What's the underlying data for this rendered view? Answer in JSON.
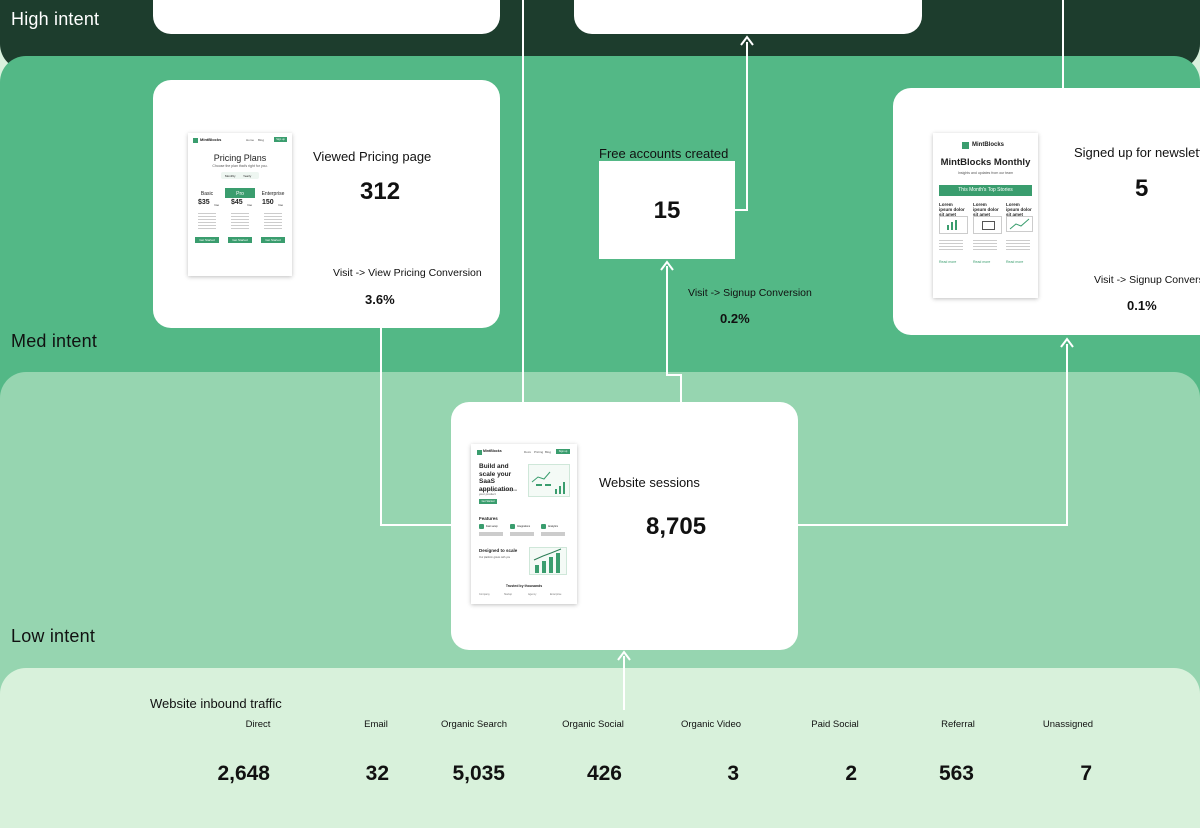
{
  "zones": {
    "high": "High intent",
    "med": "Med intent",
    "low": "Low intent"
  },
  "pricing": {
    "label": "Viewed Pricing page",
    "value": "312",
    "conv_label": "Visit -> View Pricing Conversion",
    "conv_value": "3.6%",
    "thumb": {
      "brand": "MintBlocks",
      "nav": [
        "Home",
        "Blog"
      ],
      "nav_btn": "Sign up",
      "title": "Pricing Plans",
      "subtitle": "Choose the plan that's right for you.",
      "toggle": [
        "Monthly",
        "Yearly"
      ],
      "plans": [
        {
          "name": "Basic",
          "price": "$35",
          "unit": "/mo"
        },
        {
          "name": "Pro",
          "price": "$45",
          "unit": "/mo"
        },
        {
          "name": "Enterprise",
          "price": "150",
          "unit": "/mo"
        }
      ],
      "cta": "Get Started"
    }
  },
  "signup": {
    "label": "Free accounts created",
    "value": "15",
    "conv_label": "Visit -> Signup Conversion",
    "conv_value": "0.2%"
  },
  "newsletter": {
    "label": "Signed up for newsletter",
    "value": "5",
    "conv_label": "Visit -> Signup Conversion",
    "conv_value": "0.1%",
    "thumb": {
      "brand": "MintBlocks",
      "title": "MintBlocks Monthly",
      "subtitle": "Insights and updates from our team",
      "banner": "This Month's Top Stories",
      "stories": [
        "Lorem ipsum dolor sit amet",
        "Lorem ipsum dolor sit amet",
        "Lorem ipsum dolor sit amet"
      ],
      "read_more": "Read more"
    }
  },
  "sessions": {
    "label": "Website sessions",
    "value": "8,705",
    "thumb": {
      "brand": "MintBlocks",
      "nav": [
        "Docs",
        "Pricing",
        "Blog"
      ],
      "nav_btn": "Sign up",
      "hero": "Build and scale your SaaS application",
      "hero_sub": "Everything you need to grow your product",
      "hero_btn": "Get Started",
      "features_title": "Features",
      "features": [
        "Fast setup",
        "Integrations",
        "Analytics"
      ],
      "scale_title": "Designed to scale",
      "scale_sub": "Our platform grows with you",
      "trusted": "Trusted by thousands",
      "logos": [
        "Company",
        "Startup",
        "Agency",
        "Enterprise"
      ]
    }
  },
  "traffic": {
    "title": "Website inbound traffic",
    "sources": [
      {
        "name": "Direct",
        "value": "2,648"
      },
      {
        "name": "Email",
        "value": "32"
      },
      {
        "name": "Organic Search",
        "value": "5,035"
      },
      {
        "name": "Organic Social",
        "value": "426"
      },
      {
        "name": "Organic Video",
        "value": "3"
      },
      {
        "name": "Paid Social",
        "value": "2"
      },
      {
        "name": "Referral",
        "value": "563"
      },
      {
        "name": "Unassigned",
        "value": "7"
      }
    ]
  },
  "colors": {
    "high": "#1d3d2d",
    "med": "#53b886",
    "low": "#96d5b0",
    "traffic": "#d8f1db",
    "accent": "#3a9d6e"
  }
}
